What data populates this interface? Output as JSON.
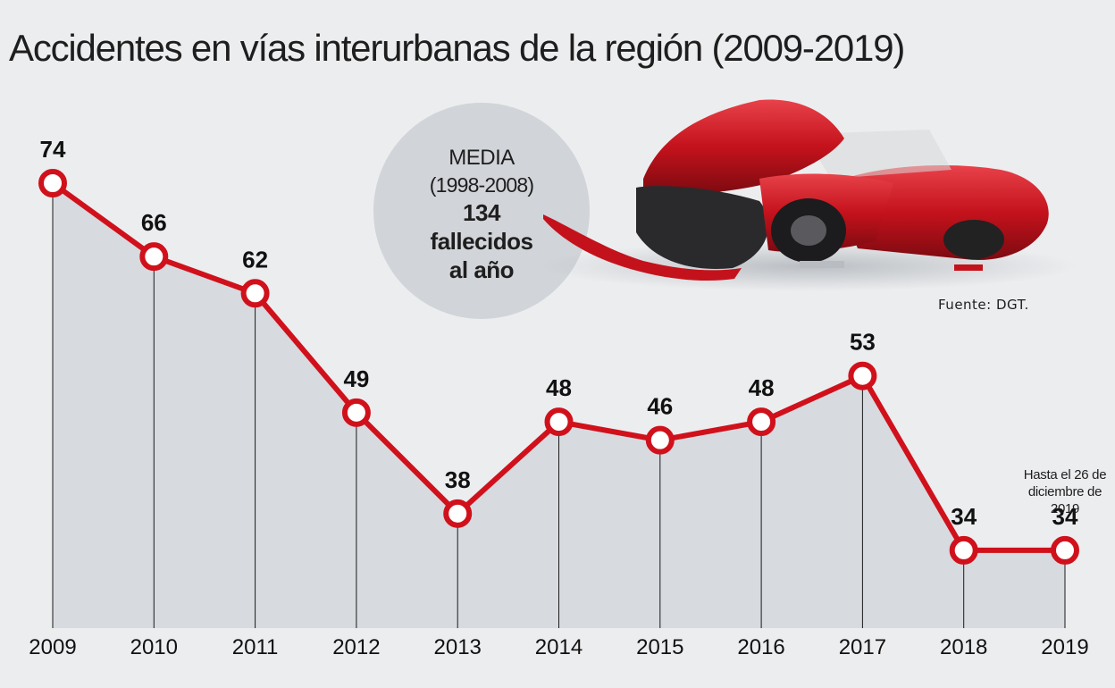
{
  "chart_data": {
    "type": "line",
    "title": "Accidentes en vías interurbanas de la región (2009-2019)",
    "categories": [
      "2009",
      "2010",
      "2011",
      "2012",
      "2013",
      "2014",
      "2015",
      "2016",
      "2017",
      "2018",
      "2019"
    ],
    "values": [
      74,
      66,
      62,
      49,
      38,
      48,
      46,
      48,
      53,
      34,
      34
    ],
    "ylim": [
      30,
      74
    ],
    "source": "Fuente: DGT.",
    "average": {
      "title": "MEDIA",
      "period": "(1998-2008)",
      "value": "134",
      "unit_line1": "fallecidos",
      "unit_line2": "al año"
    },
    "note": "Hasta el 26 de diciembre de 2019",
    "colors": {
      "line": "#d0111b",
      "area": "#d7dadf",
      "marker_fill": "#ffffff",
      "background": "#ecedef"
    }
  }
}
